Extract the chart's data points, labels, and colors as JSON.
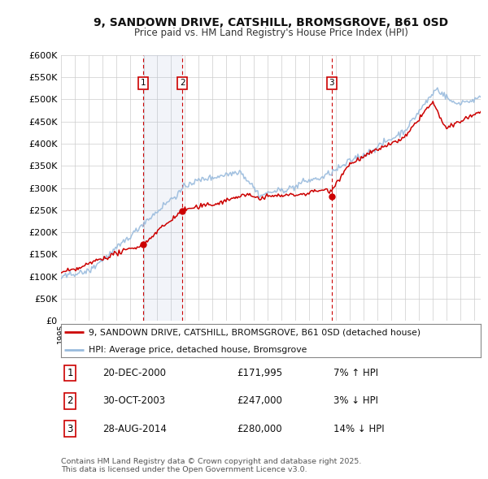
{
  "title": "9, SANDOWN DRIVE, CATSHILL, BROMSGROVE, B61 0SD",
  "subtitle": "Price paid vs. HM Land Registry's House Price Index (HPI)",
  "ylim": [
    0,
    600000
  ],
  "yticks": [
    0,
    50000,
    100000,
    150000,
    200000,
    250000,
    300000,
    350000,
    400000,
    450000,
    500000,
    550000,
    600000
  ],
  "bg_color": "#ffffff",
  "plot_bg_color": "#ffffff",
  "grid_color": "#cccccc",
  "sale_color": "#cc0000",
  "hpi_color": "#99bbdd",
  "transactions": [
    {
      "num": 1,
      "date": "20-DEC-2000",
      "price": 171995,
      "change": "7% ↑ HPI",
      "x_year": 2000.97
    },
    {
      "num": 2,
      "date": "30-OCT-2003",
      "price": 247000,
      "change": "3% ↓ HPI",
      "x_year": 2003.83
    },
    {
      "num": 3,
      "date": "28-AUG-2014",
      "price": 280000,
      "change": "14% ↓ HPI",
      "x_year": 2014.66
    }
  ],
  "footer": "Contains HM Land Registry data © Crown copyright and database right 2025.\nThis data is licensed under the Open Government Licence v3.0.",
  "legend_label1": "9, SANDOWN DRIVE, CATSHILL, BROMSGROVE, B61 0SD (detached house)",
  "legend_label2": "HPI: Average price, detached house, Bromsgrove",
  "xmin": 1995,
  "xmax": 2025.5
}
